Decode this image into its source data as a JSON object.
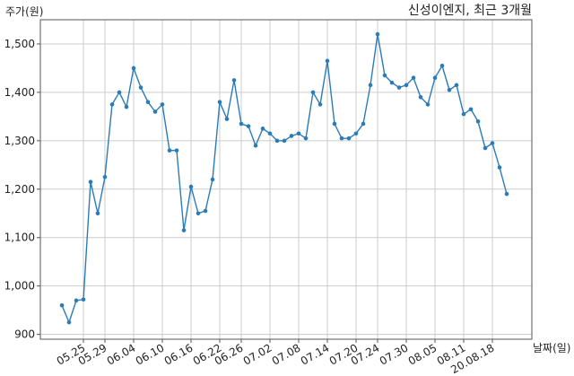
{
  "chart_data": {
    "type": "line",
    "title": "신성이엔지, 최근 3개월",
    "ylabel": "주가(원)",
    "xlabel": "날짜(일)",
    "ylim": [
      890,
      1550
    ],
    "y_ticks": [
      900,
      1000,
      1100,
      1200,
      1300,
      1400,
      1500
    ],
    "y_tick_labels": [
      "900",
      "1,000",
      "1,100",
      "1,200",
      "1,300",
      "1,400",
      "1,500"
    ],
    "x_tick_labels": [
      "05.25",
      "05.29",
      "06.04",
      "06.10",
      "06.16",
      "06.22",
      "06.26",
      "07.02",
      "07.08",
      "07.14",
      "07.20",
      "07.24",
      "07.30",
      "08.05",
      "08.11",
      "20.08.18"
    ],
    "x_tick_index": [
      3,
      6,
      10,
      14,
      18,
      22,
      25,
      29,
      33,
      37,
      41,
      44,
      48,
      52,
      56,
      60
    ],
    "grid": true,
    "legend": "none",
    "line_color": "#2b7bb9",
    "series": [
      {
        "values": [
          960,
          925,
          970,
          972,
          1215,
          1150,
          1225,
          1375,
          1400,
          1370,
          1450,
          1410,
          1380,
          1360,
          1375,
          1280,
          1280,
          1115,
          1205,
          1150,
          1155,
          1220,
          1380,
          1345,
          1425,
          1335,
          1330,
          1290,
          1325,
          1315,
          1300,
          1300,
          1310,
          1315,
          1305,
          1400,
          1375,
          1465,
          1335,
          1305,
          1305,
          1315,
          1335,
          1415,
          1520,
          1435,
          1420,
          1410,
          1415,
          1430,
          1390,
          1375,
          1430,
          1455,
          1405,
          1415,
          1355,
          1365,
          1340,
          1285,
          1295,
          1245,
          1190
        ]
      }
    ]
  }
}
